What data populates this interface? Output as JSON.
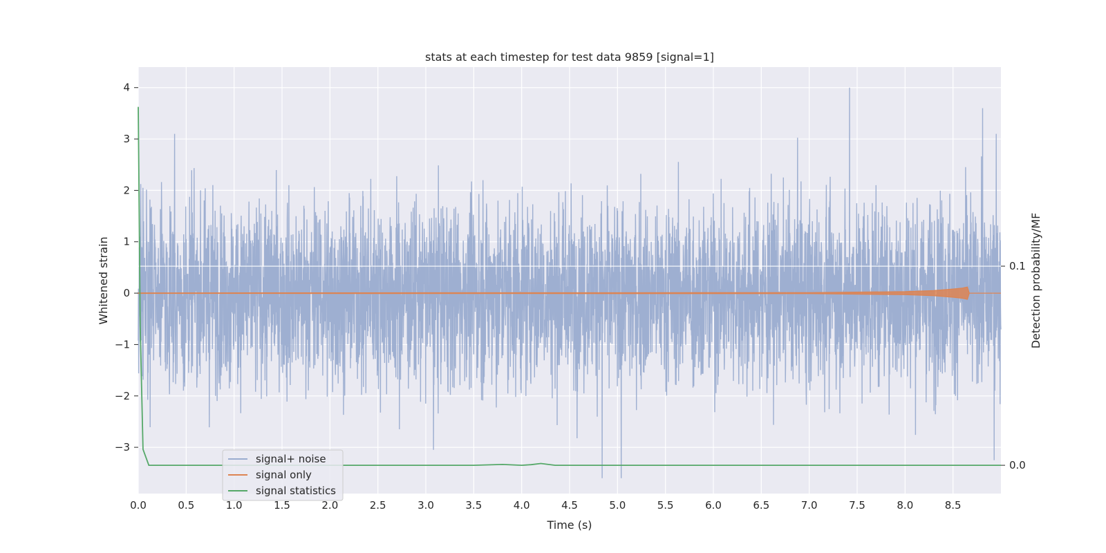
{
  "chart_data": {
    "type": "line",
    "title": "stats at each timestep for test data 9859 [signal=1]",
    "xlabel": "Time (s)",
    "ylabel": "Whitened strain",
    "ylabel_right": "Detection probability/MF",
    "xlim": [
      0.0,
      9.0
    ],
    "ylim": [
      -3.9,
      4.4
    ],
    "ylim_right": [
      -0.0142,
      0.2
    ],
    "x_ticks": [
      "0.0",
      "0.5",
      "1.0",
      "1.5",
      "2.0",
      "2.5",
      "3.0",
      "3.5",
      "4.0",
      "4.5",
      "5.0",
      "5.5",
      "6.0",
      "6.5",
      "7.0",
      "7.5",
      "8.0",
      "8.5"
    ],
    "y_ticks": [
      "4",
      "3",
      "2",
      "1",
      "0",
      "−1",
      "−2",
      "−3"
    ],
    "y_right_ticks": [
      "0.1",
      "0.0"
    ],
    "grid": true,
    "legend_placement": "lower left",
    "series": [
      {
        "name": "signal+ noise",
        "color": "#9aaccf",
        "description_values": {
          "noise_band": [
            -1.0,
            1.0
          ],
          "peaks": [
            [
              0.38,
              3.1
            ],
            [
              7.42,
              4.0
            ],
            [
              8.81,
              3.6
            ],
            [
              8.95,
              3.1
            ],
            [
              4.84,
              -3.6
            ],
            [
              5.04,
              -3.6
            ],
            [
              3.08,
              -3.05
            ],
            [
              8.93,
              -3.25
            ]
          ]
        }
      },
      {
        "name": "signal only",
        "color": "#dd8452",
        "x": [
          0.0,
          7.0,
          8.0,
          8.3,
          8.5,
          8.6,
          8.65,
          8.67,
          9.0
        ],
        "amplitude": [
          0.005,
          0.01,
          0.03,
          0.05,
          0.08,
          0.1,
          0.12,
          0.0,
          0.0
        ]
      },
      {
        "name": "signal statistics",
        "color": "#55a868",
        "x": [
          0.0,
          0.02,
          0.05,
          0.11,
          1.0,
          2.0,
          3.0,
          3.5,
          3.8,
          4.0,
          4.1,
          4.2,
          4.35,
          4.5,
          5.0,
          6.0,
          7.0,
          8.0,
          9.0
        ],
        "y_right": [
          0.18,
          0.07,
          0.008,
          0.0,
          0.0,
          0.0,
          0.0,
          0.0,
          0.0004,
          0.0,
          0.0003,
          0.0009,
          0.0,
          0.0,
          0.0,
          0.0,
          0.0,
          0.0,
          0.0
        ]
      }
    ],
    "hlines_right": [
      0.1
    ]
  }
}
